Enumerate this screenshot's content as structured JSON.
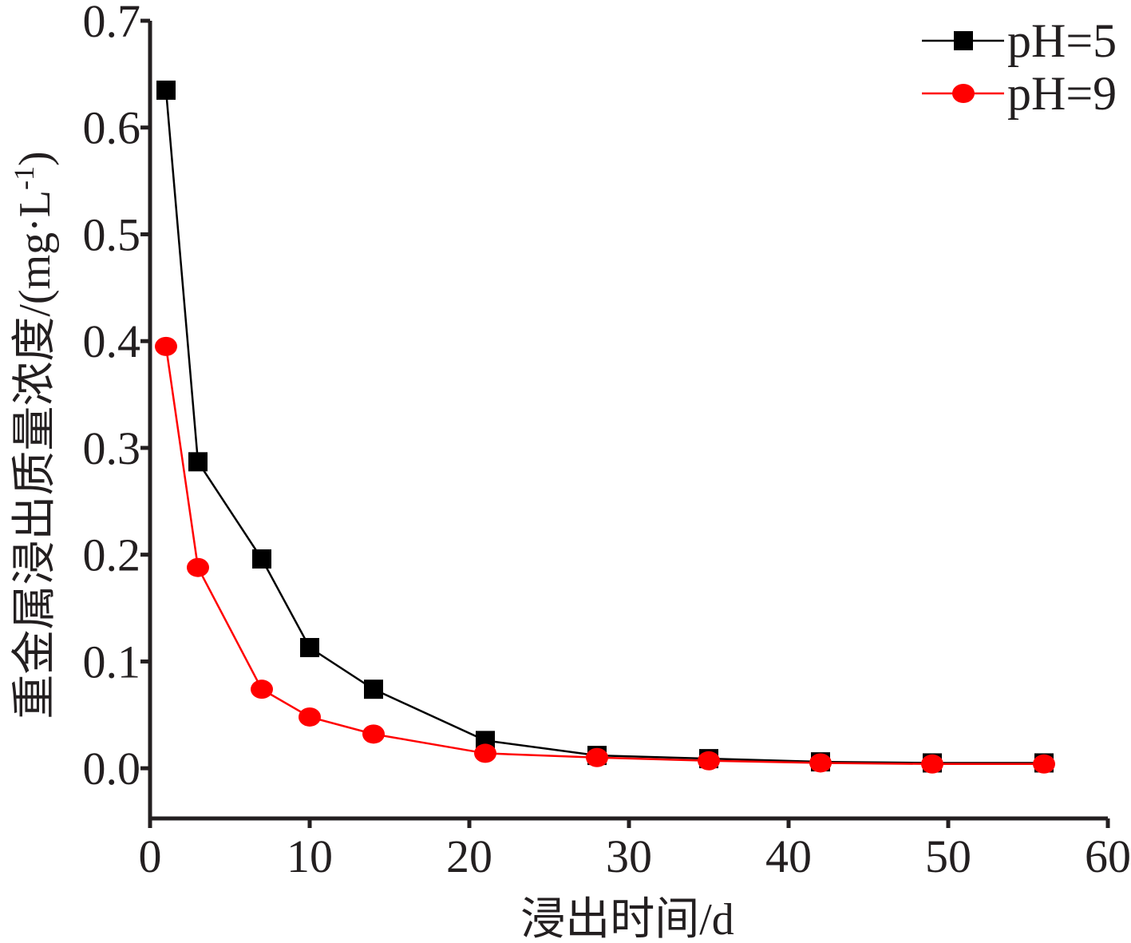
{
  "chart_data": {
    "type": "line",
    "xlabel": "浸出时间/d",
    "ylabel": "重金属浸出质量浓度/(mg·L",
    "ylabel_sup": "-1",
    "ylabel_close": ")",
    "xlim": [
      0,
      60
    ],
    "ylim": [
      -0.047,
      0.7
    ],
    "xticks": [
      0,
      10,
      20,
      30,
      40,
      50,
      60
    ],
    "xtick_labels": [
      "0",
      "10",
      "20",
      "30",
      "40",
      "50",
      "60"
    ],
    "yticks": [
      0.0,
      0.1,
      0.2,
      0.3,
      0.4,
      0.5,
      0.6,
      0.7
    ],
    "ytick_labels": [
      "0.0",
      "0.1",
      "0.2",
      "0.3",
      "0.4",
      "0.5",
      "0.6",
      "0.7"
    ],
    "grid": false,
    "legend_position": "top-right",
    "series": [
      {
        "name": "pH=5",
        "color": "#000000",
        "marker": "square",
        "x": [
          1,
          3,
          7,
          10,
          14,
          21,
          28,
          35,
          42,
          49,
          56
        ],
        "y": [
          0.635,
          0.287,
          0.196,
          0.113,
          0.074,
          0.026,
          0.012,
          0.009,
          0.006,
          0.005,
          0.005
        ]
      },
      {
        "name": "pH=9",
        "color": "#ff0000",
        "marker": "circle",
        "x": [
          1,
          3,
          7,
          10,
          14,
          21,
          28,
          35,
          42,
          49,
          56
        ],
        "y": [
          0.395,
          0.188,
          0.074,
          0.048,
          0.032,
          0.014,
          0.01,
          0.007,
          0.005,
          0.004,
          0.004
        ]
      }
    ]
  }
}
